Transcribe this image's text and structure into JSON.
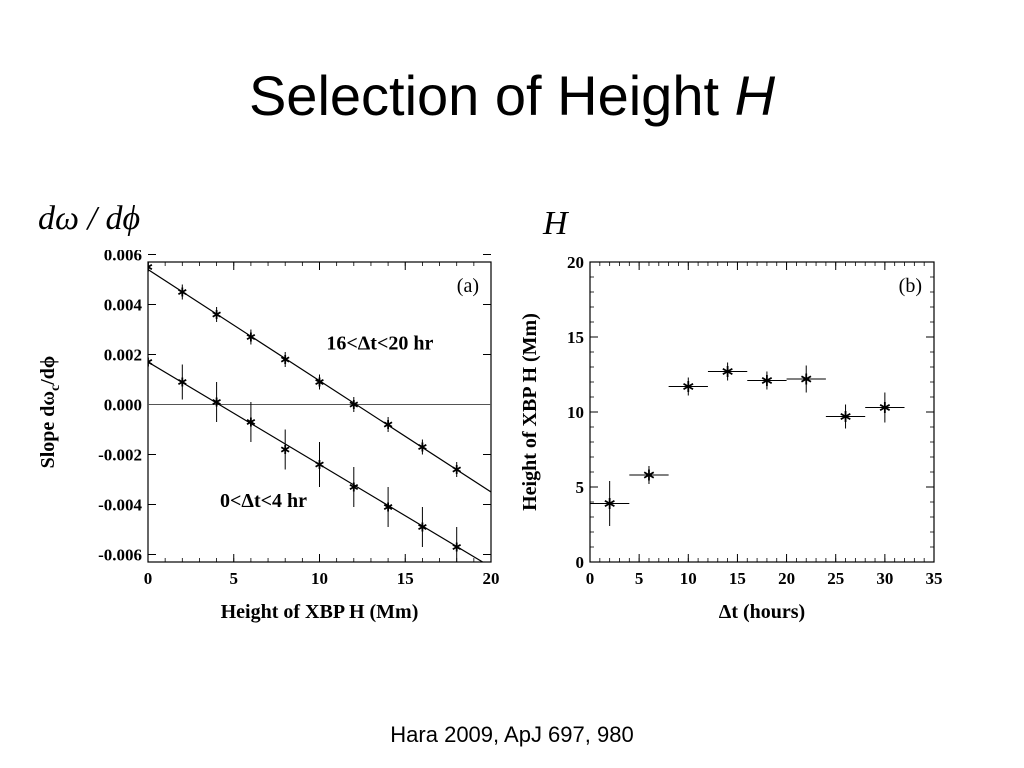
{
  "slide": {
    "title_text": "Selection of Height ",
    "title_var": "H",
    "label_left": "dω / dϕ",
    "label_right": "H",
    "footer": "Hara 2009,  ApJ 697, 980"
  },
  "chart_data": [
    {
      "type": "scatter",
      "panel_label": "(a)",
      "xlabel": "Height of XBP H (Mm)",
      "ylabel": "Slope dω",
      "ylabel_sub": "c",
      "ylabel_tail": "/dϕ",
      "xlim": [
        0,
        20
      ],
      "ylim": [
        -0.0063,
        0.0057
      ],
      "xticks": [
        0,
        5,
        10,
        15,
        20
      ],
      "xtick_labels": [
        "0",
        "5",
        "10",
        "15",
        "20"
      ],
      "yticks": [
        0.006,
        0.004,
        0.002,
        0.0,
        -0.002,
        -0.004,
        -0.006
      ],
      "ytick_labels": [
        "0.006",
        "0.004",
        "0.002",
        "0.000",
        "-0.002",
        "-0.004",
        "-0.006"
      ],
      "reference_line_y": 0,
      "series": [
        {
          "name": "16<Δt<20 hr",
          "x": [
            0,
            2,
            4,
            6,
            8,
            10,
            12,
            14,
            16,
            18
          ],
          "y": [
            0.0055,
            0.0045,
            0.0036,
            0.0027,
            0.0018,
            0.0009,
            0.0,
            -0.0008,
            -0.0017,
            -0.0026
          ],
          "yerr": [
            0.0003,
            0.0003,
            0.0003,
            0.0003,
            0.0003,
            0.0003,
            0.0003,
            0.0003,
            0.0003,
            0.0003
          ],
          "fit": {
            "x0": 0,
            "y0": 0.0054,
            "x1": 20,
            "y1": -0.0035
          },
          "label_at": {
            "x": 10.4,
            "y": 0.0022
          }
        },
        {
          "name": "0<Δt<4 hr",
          "x": [
            0,
            2,
            4,
            6,
            8,
            10,
            12,
            14,
            16,
            18
          ],
          "y": [
            0.0017,
            0.0009,
            0.0001,
            -0.0007,
            -0.0018,
            -0.0024,
            -0.0033,
            -0.0041,
            -0.0049,
            -0.0057
          ],
          "yerr": [
            0.0004,
            0.0007,
            0.0008,
            0.0008,
            0.0008,
            0.0009,
            0.0008,
            0.0008,
            0.0008,
            0.0008
          ],
          "fit": {
            "x0": 0,
            "y0": 0.0017,
            "x1": 20,
            "y1": -0.0065
          },
          "label_at": {
            "x": 4.2,
            "y": -0.0041
          }
        }
      ]
    },
    {
      "type": "scatter",
      "panel_label": "(b)",
      "xlabel": "Δt (hours)",
      "ylabel": "Height of XBP H (Mm)",
      "xlim": [
        0,
        35
      ],
      "ylim": [
        0,
        20
      ],
      "xticks": [
        0,
        5,
        10,
        15,
        20,
        25,
        30,
        35
      ],
      "xtick_labels": [
        "0",
        "5",
        "10",
        "15",
        "20",
        "25",
        "30",
        "35"
      ],
      "yticks": [
        0,
        5,
        10,
        15,
        20
      ],
      "ytick_labels": [
        "0",
        "5",
        "10",
        "15",
        "20"
      ],
      "series": [
        {
          "x": [
            2,
            6,
            10,
            14,
            18,
            22,
            26,
            30
          ],
          "y": [
            3.9,
            5.8,
            11.7,
            12.7,
            12.1,
            12.2,
            9.7,
            10.3
          ],
          "xerr": [
            2,
            2,
            2,
            2,
            2,
            2,
            2,
            2
          ],
          "yerr": [
            1.5,
            0.6,
            0.6,
            0.6,
            0.6,
            0.9,
            0.8,
            1.0
          ]
        }
      ]
    }
  ]
}
